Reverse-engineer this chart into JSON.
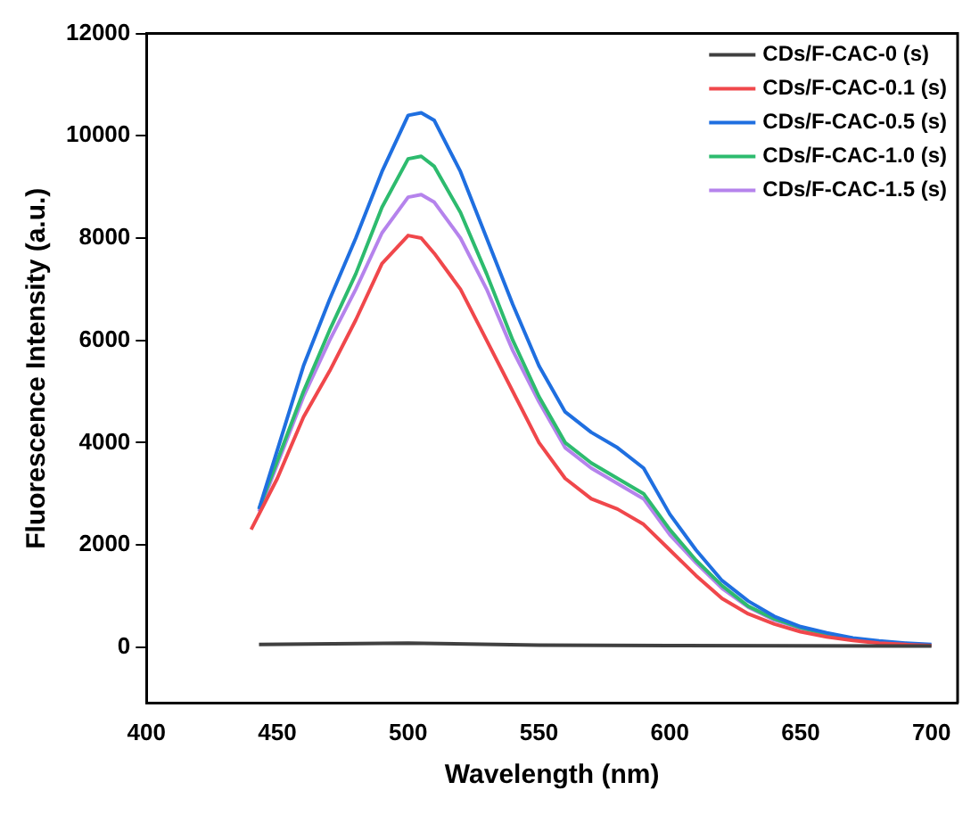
{
  "chart_data": {
    "type": "line",
    "xlabel": "Wavelength (nm)",
    "ylabel": "Fluorescence Intensity (a.u.)",
    "xlim": [
      400,
      710
    ],
    "xticks": [
      400,
      450,
      500,
      550,
      600,
      650,
      700
    ],
    "ylim": [
      -1100,
      12000
    ],
    "yticks": [
      0,
      2000,
      4000,
      6000,
      8000,
      10000,
      12000
    ],
    "grid": false,
    "legend": "top right",
    "marker": "none",
    "line_style": "solid",
    "series": [
      {
        "name": "CDs/F-CAC-0 (s)",
        "color": "#404040",
        "x": [
          443,
          500,
          550,
          600,
          700
        ],
        "values": [
          50,
          80,
          40,
          30,
          20
        ]
      },
      {
        "name": "CDs/F-CAC-0.1 (s)",
        "color": "#f0474b",
        "x": [
          440,
          450,
          460,
          470,
          480,
          490,
          500,
          505,
          510,
          520,
          530,
          540,
          550,
          560,
          570,
          580,
          590,
          600,
          610,
          620,
          630,
          640,
          650,
          660,
          670,
          680,
          690,
          700
        ],
        "values": [
          2300,
          3300,
          4500,
          5400,
          6400,
          7500,
          8050,
          8000,
          7700,
          7000,
          6000,
          5000,
          4000,
          3300,
          2900,
          2700,
          2400,
          1900,
          1400,
          950,
          650,
          450,
          300,
          200,
          130,
          80,
          50,
          30
        ]
      },
      {
        "name": "CDs/F-CAC-0.5 (s)",
        "color": "#1f6fe0",
        "x": [
          443,
          460,
          470,
          480,
          490,
          500,
          505,
          510,
          520,
          530,
          540,
          550,
          560,
          570,
          580,
          590,
          600,
          610,
          620,
          630,
          640,
          650,
          660,
          670,
          680,
          690,
          700
        ],
        "values": [
          2700,
          5500,
          6800,
          8000,
          9300,
          10400,
          10450,
          10300,
          9300,
          8000,
          6700,
          5500,
          4600,
          4200,
          3900,
          3500,
          2600,
          1900,
          1300,
          900,
          600,
          400,
          280,
          180,
          120,
          80,
          50
        ]
      },
      {
        "name": "CDs/F-CAC-1.0 (s)",
        "color": "#2dbb6e",
        "x": [
          443,
          460,
          470,
          480,
          490,
          500,
          505,
          510,
          520,
          530,
          540,
          550,
          560,
          570,
          580,
          590,
          600,
          610,
          620,
          630,
          640,
          650,
          660,
          670
        ],
        "values": [
          2700,
          5000,
          6200,
          7300,
          8600,
          9550,
          9600,
          9400,
          8500,
          7300,
          6000,
          4900,
          4000,
          3600,
          3300,
          3000,
          2300,
          1700,
          1200,
          800,
          550,
          380,
          250,
          170
        ]
      },
      {
        "name": "CDs/F-CAC-1.5 (s)",
        "color": "#b583ec",
        "x": [
          443,
          460,
          470,
          480,
          490,
          500,
          505,
          510,
          520,
          530,
          540,
          550,
          560,
          570,
          580,
          590,
          600,
          610,
          620,
          630,
          640,
          650,
          660
        ],
        "values": [
          2650,
          4900,
          6000,
          7000,
          8100,
          8800,
          8850,
          8700,
          8000,
          7000,
          5800,
          4800,
          3900,
          3500,
          3200,
          2900,
          2200,
          1650,
          1150,
          780,
          530,
          370,
          240
        ]
      }
    ]
  }
}
